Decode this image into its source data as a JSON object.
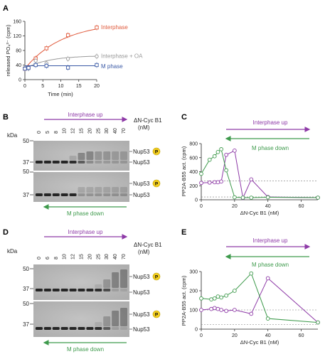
{
  "panels": {
    "A": "A",
    "B": "B",
    "C": "C",
    "D": "D",
    "E": "E"
  },
  "colors": {
    "interphase": "#e05a3c",
    "oa": "#9a9a9a",
    "mphase": "#3b5aa6",
    "purple": "#8e3aa7",
    "green": "#3e9a4c",
    "gel": "#b7b7b7",
    "band": "#1e1e1e",
    "phospho": "#f5d020"
  },
  "gelB": {
    "kda_title": "kDa",
    "top_label": "Interphase up",
    "bottom_label": "M phase down",
    "conc_title": "ΔN-Cyc B1",
    "conc_unit": "(nM)",
    "lanes": [
      "0",
      "5",
      "8",
      "10",
      "12",
      "15",
      "20",
      "25",
      "30",
      "40",
      "70"
    ],
    "markers_top": [
      "50",
      "37"
    ],
    "markers_bottom": [
      "50",
      "37"
    ],
    "band_upper": "Nup53",
    "band_lower": "Nup53",
    "phospho": "P"
  },
  "gelD": {
    "kda_title": "kDa",
    "top_label": "Interphase up",
    "bottom_label": "M phase down",
    "conc_title": "ΔN-Cyc B1",
    "conc_unit": "(nM)",
    "lanes": [
      "0",
      "6",
      "8",
      "10",
      "12",
      "15",
      "20",
      "25",
      "30",
      "40",
      "70"
    ],
    "markers_top": [
      "50",
      "37"
    ],
    "markers_bottom": [
      "50",
      "37"
    ],
    "band_upper": "Nup53",
    "band_lower": "Nup53",
    "phospho": "P"
  },
  "chart_data": [
    {
      "panel": "A",
      "type": "scatter",
      "xlabel": "Time (min)",
      "ylabel": "released PO₄³⁻ (cpm)",
      "xlim": [
        0,
        20
      ],
      "ylim": [
        0,
        160
      ],
      "xticks": [
        "0",
        "5",
        "10",
        "15",
        "20"
      ],
      "yticks": [
        "0",
        "40",
        "80",
        "120",
        "160"
      ],
      "series": [
        {
          "name": "Interphase",
          "color_key": "interphase",
          "marker": "square",
          "x": [
            0,
            1,
            3,
            6,
            12,
            20
          ],
          "y": [
            30,
            34,
            58,
            86,
            122,
            143
          ]
        },
        {
          "name": "Interphase + OA",
          "color_key": "oa",
          "marker": "circle",
          "x": [
            0,
            1,
            3,
            6,
            12,
            20
          ],
          "y": [
            33,
            31,
            52,
            45,
            57,
            64
          ]
        },
        {
          "name": "M phase",
          "color_key": "mphase",
          "marker": "square",
          "x": [
            0,
            1,
            3,
            6,
            12,
            20
          ],
          "y": [
            30,
            32,
            40,
            38,
            33,
            40
          ]
        }
      ]
    },
    {
      "panel": "C",
      "type": "line",
      "xlabel": "ΔN-Cyc B1 (nM)",
      "ylabel": "PP2A-B55 act. (cpm)",
      "xlim": [
        0,
        70
      ],
      "ylim": [
        0,
        800
      ],
      "xticks": [
        "0",
        "20",
        "40",
        "60"
      ],
      "yticks": [
        "0",
        "200",
        "400",
        "600",
        "800"
      ],
      "top_label": "Interphase up",
      "bottom_label": "M phase down",
      "ref_lines": [
        270,
        40
      ],
      "series": [
        {
          "name": "",
          "color_key": "purple",
          "x": [
            0,
            5,
            8,
            10,
            12,
            15,
            20,
            25,
            30,
            40,
            70
          ],
          "y": [
            240,
            245,
            250,
            250,
            260,
            640,
            700,
            25,
            290,
            40,
            30
          ]
        },
        {
          "name": "",
          "color_key": "green",
          "x": [
            0,
            5,
            8,
            10,
            12,
            15,
            20,
            25,
            30,
            40,
            70
          ],
          "y": [
            370,
            570,
            620,
            680,
            720,
            420,
            35,
            30,
            30,
            35,
            30
          ]
        }
      ]
    },
    {
      "panel": "E",
      "type": "line",
      "xlabel": "ΔN-Cyc B1 (nM)",
      "ylabel": "PP2A-B55 act. (cpm)",
      "xlim": [
        0,
        70
      ],
      "ylim": [
        0,
        300
      ],
      "xticks": [
        "0",
        "20",
        "40",
        "60"
      ],
      "yticks": [
        "0",
        "100",
        "200",
        "300"
      ],
      "top_label": "Interphase up",
      "bottom_label": "M phase down",
      "ref_lines": [
        100,
        25
      ],
      "series": [
        {
          "name": "",
          "color_key": "purple",
          "x": [
            0,
            6,
            8,
            10,
            12,
            15,
            20,
            30,
            40,
            70
          ],
          "y": [
            100,
            105,
            110,
            105,
            100,
            95,
            100,
            80,
            265,
            35
          ]
        },
        {
          "name": "",
          "color_key": "green",
          "x": [
            0,
            6,
            8,
            10,
            12,
            15,
            20,
            30,
            40,
            70
          ],
          "y": [
            160,
            155,
            160,
            170,
            165,
            175,
            200,
            290,
            55,
            35
          ]
        }
      ]
    }
  ]
}
